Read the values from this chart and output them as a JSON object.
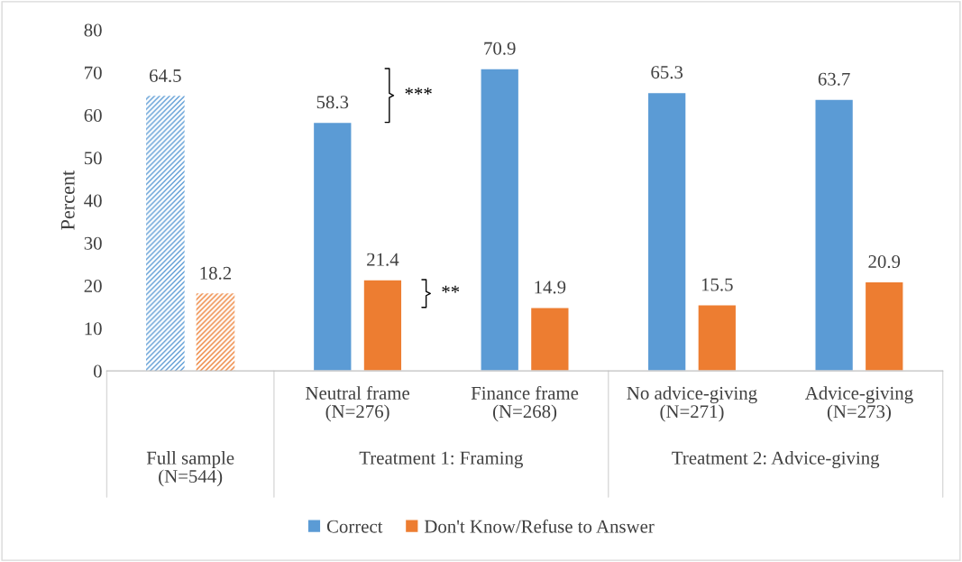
{
  "chart_data": {
    "type": "bar",
    "ylabel": "Percent",
    "categories": [
      null,
      "Neutral frame\n(N=276)",
      "Finance frame\n(N=268)",
      "No advice-giving\n(N=271)",
      "Advice-giving\n(N=273)"
    ],
    "series": [
      {
        "name": "Correct",
        "color": "#5b9bd5",
        "values": [
          64.5,
          58.3,
          70.9,
          65.3,
          63.7
        ]
      },
      {
        "name": "Don't Know/Refuse to Answer",
        "color": "#ed7d31",
        "values": [
          18.2,
          21.4,
          14.9,
          15.5,
          20.9
        ]
      }
    ],
    "ylim": [
      0,
      80
    ],
    "yticks": [
      0,
      10,
      20,
      30,
      40,
      50,
      60,
      70,
      80
    ],
    "data_labels": true,
    "legend": "bottom",
    "annotations": [
      "Full sample\n(N=544)",
      "Treatment 1: Framing",
      "Treatment 2: Advice-giving",
      "***",
      "**"
    ]
  }
}
